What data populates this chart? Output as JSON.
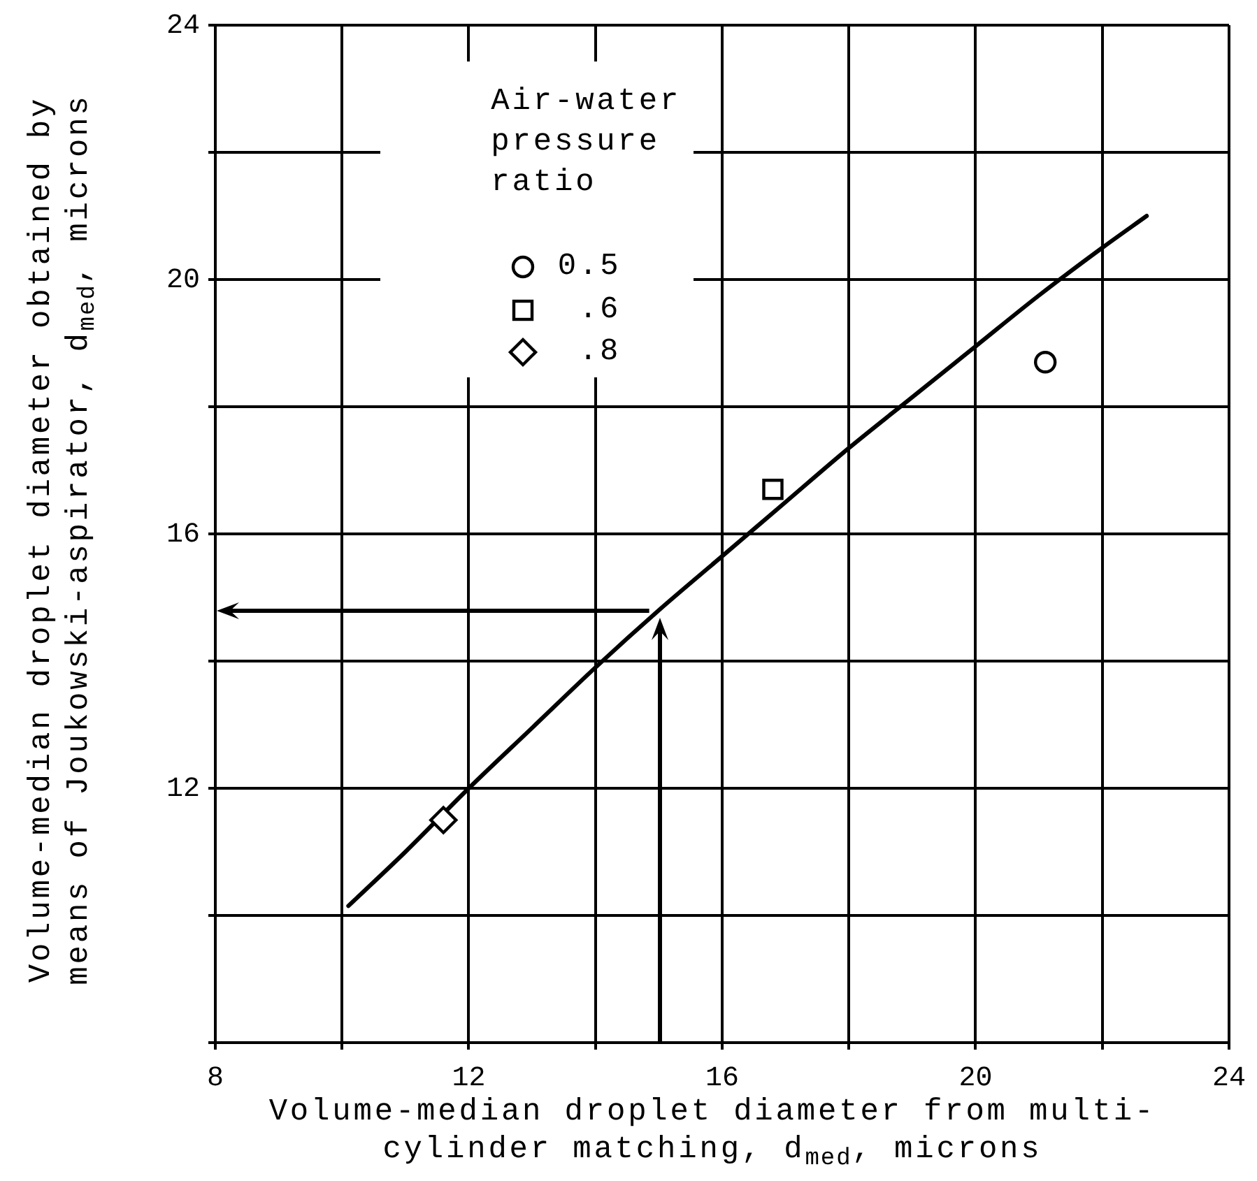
{
  "chart_data": {
    "type": "scatter",
    "xlabel": "Volume-median droplet diameter from multi-cylinder matching, d$_{med}$, microns",
    "ylabel": "Volume-median droplet diameter obtained by means of Joukowski-aspirator, d$_{med}$, microns",
    "legend_title": "Air-water pressure ratio",
    "xlim": [
      8,
      24
    ],
    "ylim": [
      8,
      24
    ],
    "xticks": [
      8,
      {
        "value": 10,
        "label": null
      },
      12,
      {
        "value": 14,
        "label": null
      },
      16,
      {
        "value": 18,
        "label": null
      },
      20,
      {
        "value": 22,
        "label": null
      },
      24
    ],
    "yticks": [
      {
        "value": 8,
        "label": null
      },
      {
        "value": 10,
        "label": null
      },
      12,
      {
        "value": 14,
        "label": null
      },
      16,
      {
        "value": 18,
        "label": null
      },
      20,
      {
        "value": 22,
        "label": null
      },
      24
    ],
    "grid": true,
    "legend": "top left",
    "series": [
      {
        "name": "0.5",
        "color": "#000000",
        "marker": "circle",
        "x": [
          21.1
        ],
        "values": [
          18.7
        ]
      },
      {
        "name": ".6",
        "color": "#000000",
        "marker": "square",
        "x": [
          16.8
        ],
        "values": [
          16.7
        ]
      },
      {
        "name": ".8",
        "color": "#000000",
        "marker": "diamond",
        "x": [
          11.6
        ],
        "values": [
          11.5
        ]
      },
      {
        "type": "line",
        "color": "#000000",
        "marker": "none",
        "x": [
          10.1,
          11,
          12,
          13,
          14,
          15,
          16,
          17,
          18,
          19,
          20,
          21,
          22,
          22.7
        ],
        "values": [
          10.15,
          11.0,
          12.0,
          12.95,
          13.9,
          14.8,
          15.65,
          16.5,
          17.35,
          18.15,
          18.95,
          19.75,
          20.5,
          21.0
        ]
      }
    ]
  }
}
